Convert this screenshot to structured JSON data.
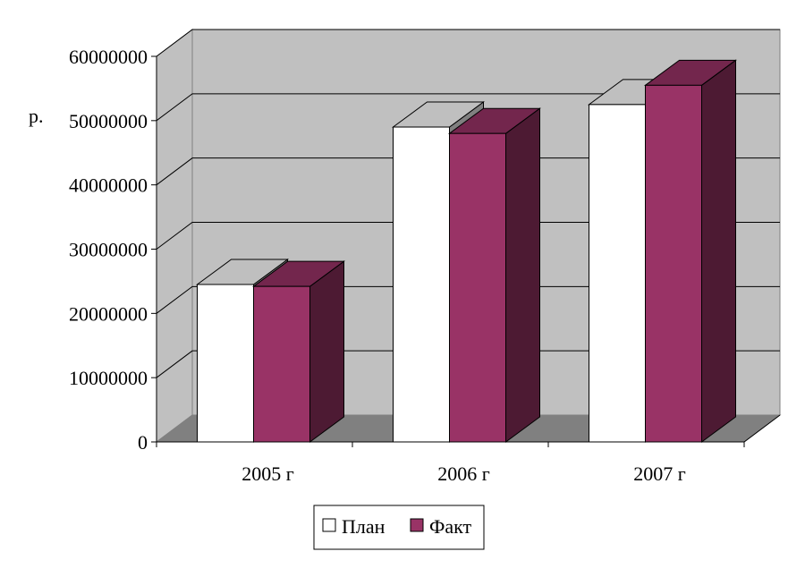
{
  "chart_data": {
    "type": "bar",
    "style": "3d-clustered-column",
    "ylabel": "р.",
    "categories": [
      "2005 г",
      "2006 г",
      "2007 г"
    ],
    "series": [
      {
        "name": "План",
        "values": [
          24500000,
          49000000,
          52500000
        ],
        "color": "#ffffff"
      },
      {
        "name": "Факт",
        "values": [
          24200000,
          48000000,
          55500000
        ],
        "color": "#993366"
      }
    ],
    "ylim": [
      0,
      60000000
    ],
    "yticks": [
      "0",
      "10000000",
      "20000000",
      "30000000",
      "40000000",
      "50000000",
      "60000000"
    ],
    "grid": true,
    "wall_color": "#c0c0c0",
    "floor_color": "#808080",
    "legend_position": "bottom"
  }
}
